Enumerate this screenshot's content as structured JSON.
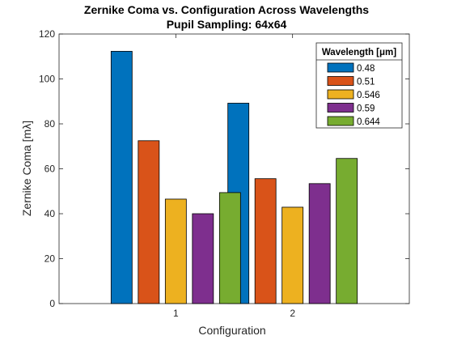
{
  "chart_data": {
    "type": "bar",
    "title": "Zernike Coma vs. Configuration Across Wavelengths",
    "subtitle": "Pupil Sampling: 64x64",
    "xlabel": "Configuration",
    "ylabel": "Zernike Coma [mλ]",
    "categories": [
      "1",
      "2"
    ],
    "ylim": [
      0,
      120
    ],
    "yticks": [
      "0",
      "20",
      "40",
      "60",
      "80",
      "100",
      "120"
    ],
    "legend": {
      "title": "Wavelength [μm]",
      "placement": "top-right"
    },
    "grid": false,
    "series": [
      {
        "name": "0.48",
        "color": "#0072BD",
        "values": [
          112.3,
          89.2
        ]
      },
      {
        "name": "0.51",
        "color": "#D95319",
        "values": [
          72.5,
          55.6
        ]
      },
      {
        "name": "0.546",
        "color": "#EDB120",
        "values": [
          46.5,
          42.9
        ]
      },
      {
        "name": "0.59",
        "color": "#7E2F8E",
        "values": [
          40.0,
          53.4
        ]
      },
      {
        "name": "0.644",
        "color": "#77AC30",
        "values": [
          49.4,
          64.6
        ]
      }
    ]
  }
}
